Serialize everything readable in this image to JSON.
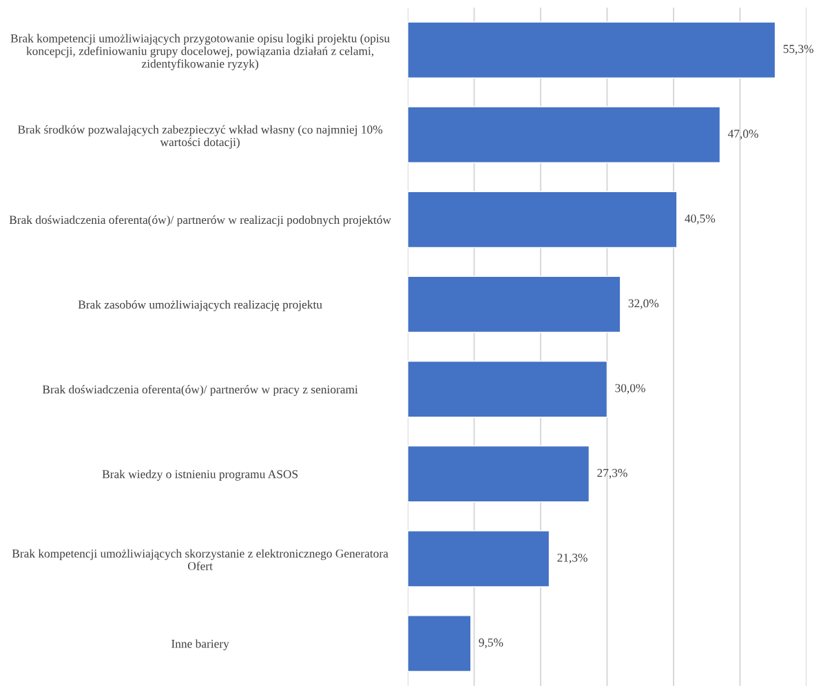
{
  "chart_data": {
    "type": "bar",
    "orientation": "horizontal",
    "categories": [
      "Brak kompetencji umożliwiających przygotowanie opisu logiki projektu (opisu koncepcji, zdefiniowaniu grupy docelowej, powiązania działań z celami, zidentyfikowanie ryzyk)",
      "Brak środków pozwalających zabezpieczyć wkład własny (co najmniej 10% wartości dotacji)",
      "Brak doświadczenia oferenta(ów)/ partnerów w realizacji podobnych projektów",
      "Brak zasobów umożliwiających realizację projektu",
      "Brak doświadczenia oferenta(ów)/ partnerów w pracy z seniorami",
      "Brak wiedzy o istnieniu programu ASOS",
      "Brak kompetencji umożliwiających skorzystanie z elektronicznego Generatora Ofert",
      "Inne bariery"
    ],
    "values": [
      55.3,
      47.0,
      40.5,
      32.0,
      30.0,
      27.3,
      21.3,
      9.5
    ],
    "value_labels": [
      "55,3%",
      "47,0%",
      "40,5%",
      "32,0%",
      "30,0%",
      "27,3%",
      "21,3%",
      "9,5%"
    ],
    "color": "#4472c4",
    "xlim": [
      0,
      60
    ],
    "xticks": [
      {
        "value": 0,
        "label": null
      },
      {
        "value": 10,
        "label": null
      },
      {
        "value": 20,
        "label": null
      },
      {
        "value": 30,
        "label": null
      },
      {
        "value": 40,
        "label": null
      },
      {
        "value": 50,
        "label": null
      },
      {
        "value": 60,
        "label": null
      }
    ],
    "grid": "x",
    "tick_labels": "y"
  }
}
